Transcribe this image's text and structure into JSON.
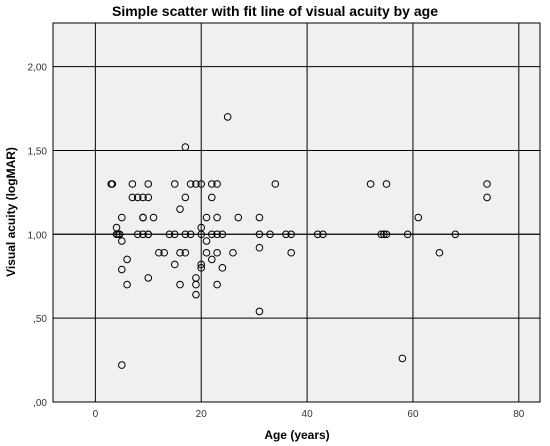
{
  "chart_data": {
    "type": "scatter",
    "title": "Simple scatter with fit line of visual acuity by age",
    "xlabel": "Age (years)",
    "ylabel": "Visual acuity (logMAR)",
    "xlim": [
      -8,
      84
    ],
    "ylim": [
      0,
      2.26
    ],
    "x_ticks": [
      0,
      20,
      40,
      60,
      80
    ],
    "y_ticks": [
      0,
      0.5,
      1.0,
      1.5,
      2.0
    ],
    "y_tick_labels": [
      ",00",
      ",50",
      "1,00",
      "1,50",
      "2,00"
    ],
    "fit_line_y": 1.0,
    "grid": true,
    "colors": {
      "plot_background": "#f0f0f0",
      "grid": "#000000",
      "marker_stroke": "#000000",
      "fit_line": "#000000"
    },
    "points": [
      {
        "x": 3,
        "y": 1.3
      },
      {
        "x": 3.2,
        "y": 1.3
      },
      {
        "x": 4,
        "y": 1.04
      },
      {
        "x": 4,
        "y": 1.0
      },
      {
        "x": 4.3,
        "y": 1.0
      },
      {
        "x": 4.6,
        "y": 1.0
      },
      {
        "x": 5,
        "y": 1.1
      },
      {
        "x": 5,
        "y": 0.96
      },
      {
        "x": 5,
        "y": 0.79
      },
      {
        "x": 5,
        "y": 0.22
      },
      {
        "x": 6,
        "y": 0.85
      },
      {
        "x": 6,
        "y": 0.7
      },
      {
        "x": 7,
        "y": 1.3
      },
      {
        "x": 7,
        "y": 1.22
      },
      {
        "x": 8,
        "y": 1.22
      },
      {
        "x": 8,
        "y": 1.0
      },
      {
        "x": 9,
        "y": 1.22
      },
      {
        "x": 9,
        "y": 1.1
      },
      {
        "x": 9,
        "y": 1.1
      },
      {
        "x": 9,
        "y": 1.0
      },
      {
        "x": 10,
        "y": 1.3
      },
      {
        "x": 10,
        "y": 1.22
      },
      {
        "x": 10,
        "y": 1.0
      },
      {
        "x": 10,
        "y": 1.0
      },
      {
        "x": 10,
        "y": 0.74
      },
      {
        "x": 11,
        "y": 1.1
      },
      {
        "x": 12,
        "y": 0.89
      },
      {
        "x": 13,
        "y": 0.89
      },
      {
        "x": 14,
        "y": 1.0
      },
      {
        "x": 15,
        "y": 1.3
      },
      {
        "x": 15,
        "y": 1.0
      },
      {
        "x": 15,
        "y": 0.82
      },
      {
        "x": 16,
        "y": 1.15
      },
      {
        "x": 16,
        "y": 0.89
      },
      {
        "x": 16,
        "y": 0.7
      },
      {
        "x": 17,
        "y": 1.52
      },
      {
        "x": 17,
        "y": 1.22
      },
      {
        "x": 17,
        "y": 1.0
      },
      {
        "x": 17,
        "y": 0.89
      },
      {
        "x": 18,
        "y": 1.3
      },
      {
        "x": 18,
        "y": 1.0
      },
      {
        "x": 19,
        "y": 1.3
      },
      {
        "x": 19,
        "y": 0.74
      },
      {
        "x": 19,
        "y": 0.7
      },
      {
        "x": 19,
        "y": 0.64
      },
      {
        "x": 20,
        "y": 1.3
      },
      {
        "x": 20,
        "y": 1.04
      },
      {
        "x": 20,
        "y": 1.0
      },
      {
        "x": 20,
        "y": 0.82
      },
      {
        "x": 20,
        "y": 0.8
      },
      {
        "x": 21,
        "y": 1.1
      },
      {
        "x": 21,
        "y": 0.96
      },
      {
        "x": 21,
        "y": 0.89
      },
      {
        "x": 22,
        "y": 1.3
      },
      {
        "x": 22,
        "y": 1.22
      },
      {
        "x": 22,
        "y": 1.0
      },
      {
        "x": 22,
        "y": 0.85
      },
      {
        "x": 23,
        "y": 1.3
      },
      {
        "x": 23,
        "y": 1.1
      },
      {
        "x": 23,
        "y": 1.0
      },
      {
        "x": 23,
        "y": 0.89
      },
      {
        "x": 23,
        "y": 0.7
      },
      {
        "x": 24,
        "y": 1.0
      },
      {
        "x": 24,
        "y": 0.8
      },
      {
        "x": 25,
        "y": 1.7
      },
      {
        "x": 26,
        "y": 0.89
      },
      {
        "x": 27,
        "y": 1.1
      },
      {
        "x": 31,
        "y": 1.1
      },
      {
        "x": 31,
        "y": 1.0
      },
      {
        "x": 31,
        "y": 0.92
      },
      {
        "x": 31,
        "y": 0.54
      },
      {
        "x": 33,
        "y": 1.0
      },
      {
        "x": 34,
        "y": 1.3
      },
      {
        "x": 36,
        "y": 1.0
      },
      {
        "x": 37,
        "y": 1.0
      },
      {
        "x": 37,
        "y": 0.89
      },
      {
        "x": 42,
        "y": 1.0
      },
      {
        "x": 43,
        "y": 1.0
      },
      {
        "x": 52,
        "y": 1.3
      },
      {
        "x": 54,
        "y": 1.0
      },
      {
        "x": 54.5,
        "y": 1.0
      },
      {
        "x": 55,
        "y": 1.3
      },
      {
        "x": 55,
        "y": 1.0
      },
      {
        "x": 58,
        "y": 0.26
      },
      {
        "x": 59,
        "y": 1.0
      },
      {
        "x": 61,
        "y": 1.1
      },
      {
        "x": 65,
        "y": 0.89
      },
      {
        "x": 68,
        "y": 1.0
      },
      {
        "x": 74,
        "y": 1.3
      },
      {
        "x": 74,
        "y": 1.22
      }
    ]
  }
}
